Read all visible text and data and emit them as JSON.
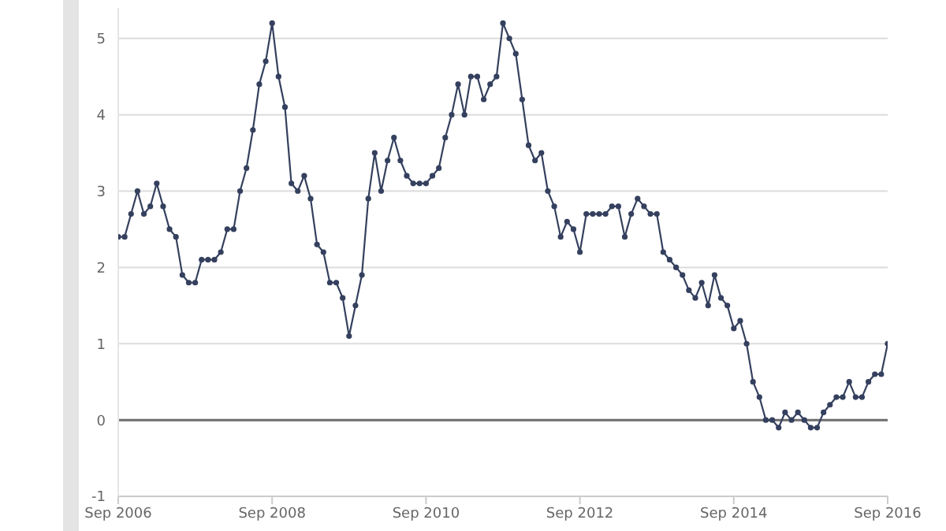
{
  "chart_data": {
    "type": "line",
    "x": [
      "2006-09",
      "2006-10",
      "2006-11",
      "2006-12",
      "2007-01",
      "2007-02",
      "2007-03",
      "2007-04",
      "2007-05",
      "2007-06",
      "2007-07",
      "2007-08",
      "2007-09",
      "2007-10",
      "2007-11",
      "2007-12",
      "2008-01",
      "2008-02",
      "2008-03",
      "2008-04",
      "2008-05",
      "2008-06",
      "2008-07",
      "2008-08",
      "2008-09",
      "2008-10",
      "2008-11",
      "2008-12",
      "2009-01",
      "2009-02",
      "2009-03",
      "2009-04",
      "2009-05",
      "2009-06",
      "2009-07",
      "2009-08",
      "2009-09",
      "2009-10",
      "2009-11",
      "2009-12",
      "2010-01",
      "2010-02",
      "2010-03",
      "2010-04",
      "2010-05",
      "2010-06",
      "2010-07",
      "2010-08",
      "2010-09",
      "2010-10",
      "2010-11",
      "2010-12",
      "2011-01",
      "2011-02",
      "2011-03",
      "2011-04",
      "2011-05",
      "2011-06",
      "2011-07",
      "2011-08",
      "2011-09",
      "2011-10",
      "2011-11",
      "2011-12",
      "2012-01",
      "2012-02",
      "2012-03",
      "2012-04",
      "2012-05",
      "2012-06",
      "2012-07",
      "2012-08",
      "2012-09",
      "2012-10",
      "2012-11",
      "2012-12",
      "2013-01",
      "2013-02",
      "2013-03",
      "2013-04",
      "2013-05",
      "2013-06",
      "2013-07",
      "2013-08",
      "2013-09",
      "2013-10",
      "2013-11",
      "2013-12",
      "2014-01",
      "2014-02",
      "2014-03",
      "2014-04",
      "2014-05",
      "2014-06",
      "2014-07",
      "2014-08",
      "2014-09",
      "2014-10",
      "2014-11",
      "2014-12",
      "2015-01",
      "2015-02",
      "2015-03",
      "2015-04",
      "2015-05",
      "2015-06",
      "2015-07",
      "2015-08",
      "2015-09",
      "2015-10",
      "2015-11",
      "2015-12",
      "2016-01",
      "2016-02",
      "2016-03",
      "2016-04",
      "2016-05",
      "2016-06",
      "2016-07",
      "2016-08",
      "2016-09"
    ],
    "series": [
      {
        "color": "#34405e",
        "values": [
          2.4,
          2.4,
          2.7,
          3.0,
          2.7,
          2.8,
          3.1,
          2.8,
          2.5,
          2.4,
          1.9,
          1.8,
          1.8,
          2.1,
          2.1,
          2.1,
          2.2,
          2.5,
          2.5,
          3.0,
          3.3,
          3.8,
          4.4,
          4.7,
          5.2,
          4.5,
          4.1,
          3.1,
          3.0,
          3.2,
          2.9,
          2.3,
          2.2,
          1.8,
          1.8,
          1.6,
          1.1,
          1.5,
          1.9,
          2.9,
          3.5,
          3.0,
          3.4,
          3.7,
          3.4,
          3.2,
          3.1,
          3.1,
          3.1,
          3.2,
          3.3,
          3.7,
          4.0,
          4.4,
          4.0,
          4.5,
          4.5,
          4.2,
          4.4,
          4.5,
          5.2,
          5.0,
          4.8,
          4.2,
          3.6,
          3.4,
          3.5,
          3.0,
          2.8,
          2.4,
          2.6,
          2.5,
          2.2,
          2.7,
          2.7,
          2.7,
          2.7,
          2.8,
          2.8,
          2.4,
          2.7,
          2.9,
          2.8,
          2.7,
          2.7,
          2.2,
          2.1,
          2.0,
          1.9,
          1.7,
          1.6,
          1.8,
          1.5,
          1.9,
          1.6,
          1.5,
          1.2,
          1.3,
          1.0,
          0.5,
          0.3,
          0.0,
          0.0,
          -0.1,
          0.1,
          0.0,
          0.1,
          0.0,
          -0.1,
          -0.1,
          0.1,
          0.2,
          0.3,
          0.3,
          0.5,
          0.3,
          0.3,
          0.5,
          0.6,
          0.6,
          1.0
        ]
      }
    ],
    "xlim": [
      "2006-09",
      "2016-09"
    ],
    "xticks": [
      {
        "value": "2006-09",
        "label": "Sep 2006"
      },
      {
        "value": "2008-09",
        "label": "Sep 2008"
      },
      {
        "value": "2010-09",
        "label": "Sep 2010"
      },
      {
        "value": "2012-09",
        "label": "Sep 2012"
      },
      {
        "value": "2014-09",
        "label": "Sep 2014"
      },
      {
        "value": "2016-09",
        "label": "Sep 2016"
      }
    ],
    "ylim": [
      -1,
      5.4
    ],
    "yticks": [
      -1,
      0,
      1,
      2,
      3,
      4,
      5
    ],
    "grid": "y",
    "marker": "circle",
    "line_style": "solid",
    "legend": false,
    "ref_lines": [
      {
        "axis": "y",
        "value": 0,
        "color": "#6e6e6e"
      }
    ]
  }
}
